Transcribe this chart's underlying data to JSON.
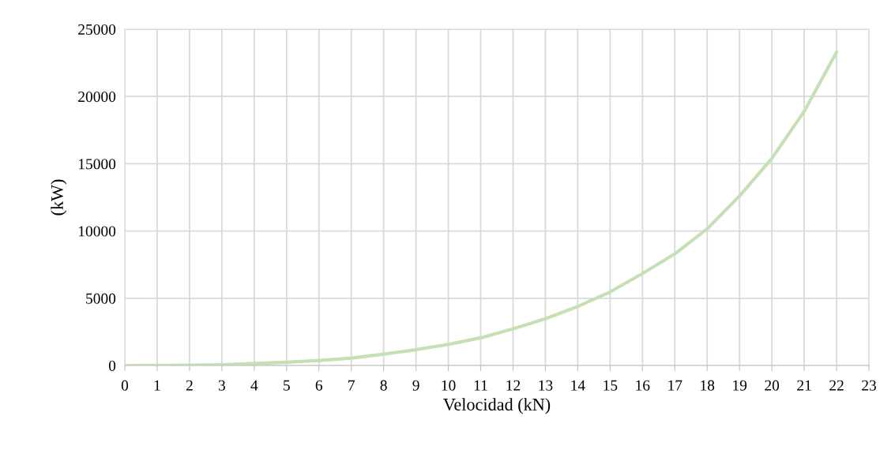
{
  "chart_data": {
    "type": "line",
    "xlabel": "Velocidad (kN)",
    "ylabel": "(kW)",
    "x": [
      0,
      1,
      2,
      3,
      4,
      5,
      6,
      7,
      8,
      9,
      10,
      11,
      12,
      13,
      14,
      15,
      16,
      17,
      18,
      19,
      20,
      21,
      22
    ],
    "series": [
      {
        "color": "#c5e0b4",
        "values": [
          0,
          5,
          20,
          60,
          150,
          240,
          370,
          550,
          840,
          1180,
          1570,
          2060,
          2730,
          3480,
          4390,
          5470,
          6840,
          8300,
          10160,
          12600,
          15400,
          18900,
          23300
        ]
      }
    ],
    "xlim": [
      0,
      23
    ],
    "xticks": [
      0,
      1,
      2,
      3,
      4,
      5,
      6,
      7,
      8,
      9,
      10,
      11,
      12,
      13,
      14,
      15,
      16,
      17,
      18,
      19,
      20,
      21,
      22,
      23
    ],
    "ylim": [
      0,
      25000
    ],
    "yticks": [
      0,
      5000,
      10000,
      15000,
      20000,
      25000
    ],
    "grid": true,
    "marker": "none",
    "line_style": "solid",
    "legend": false
  }
}
